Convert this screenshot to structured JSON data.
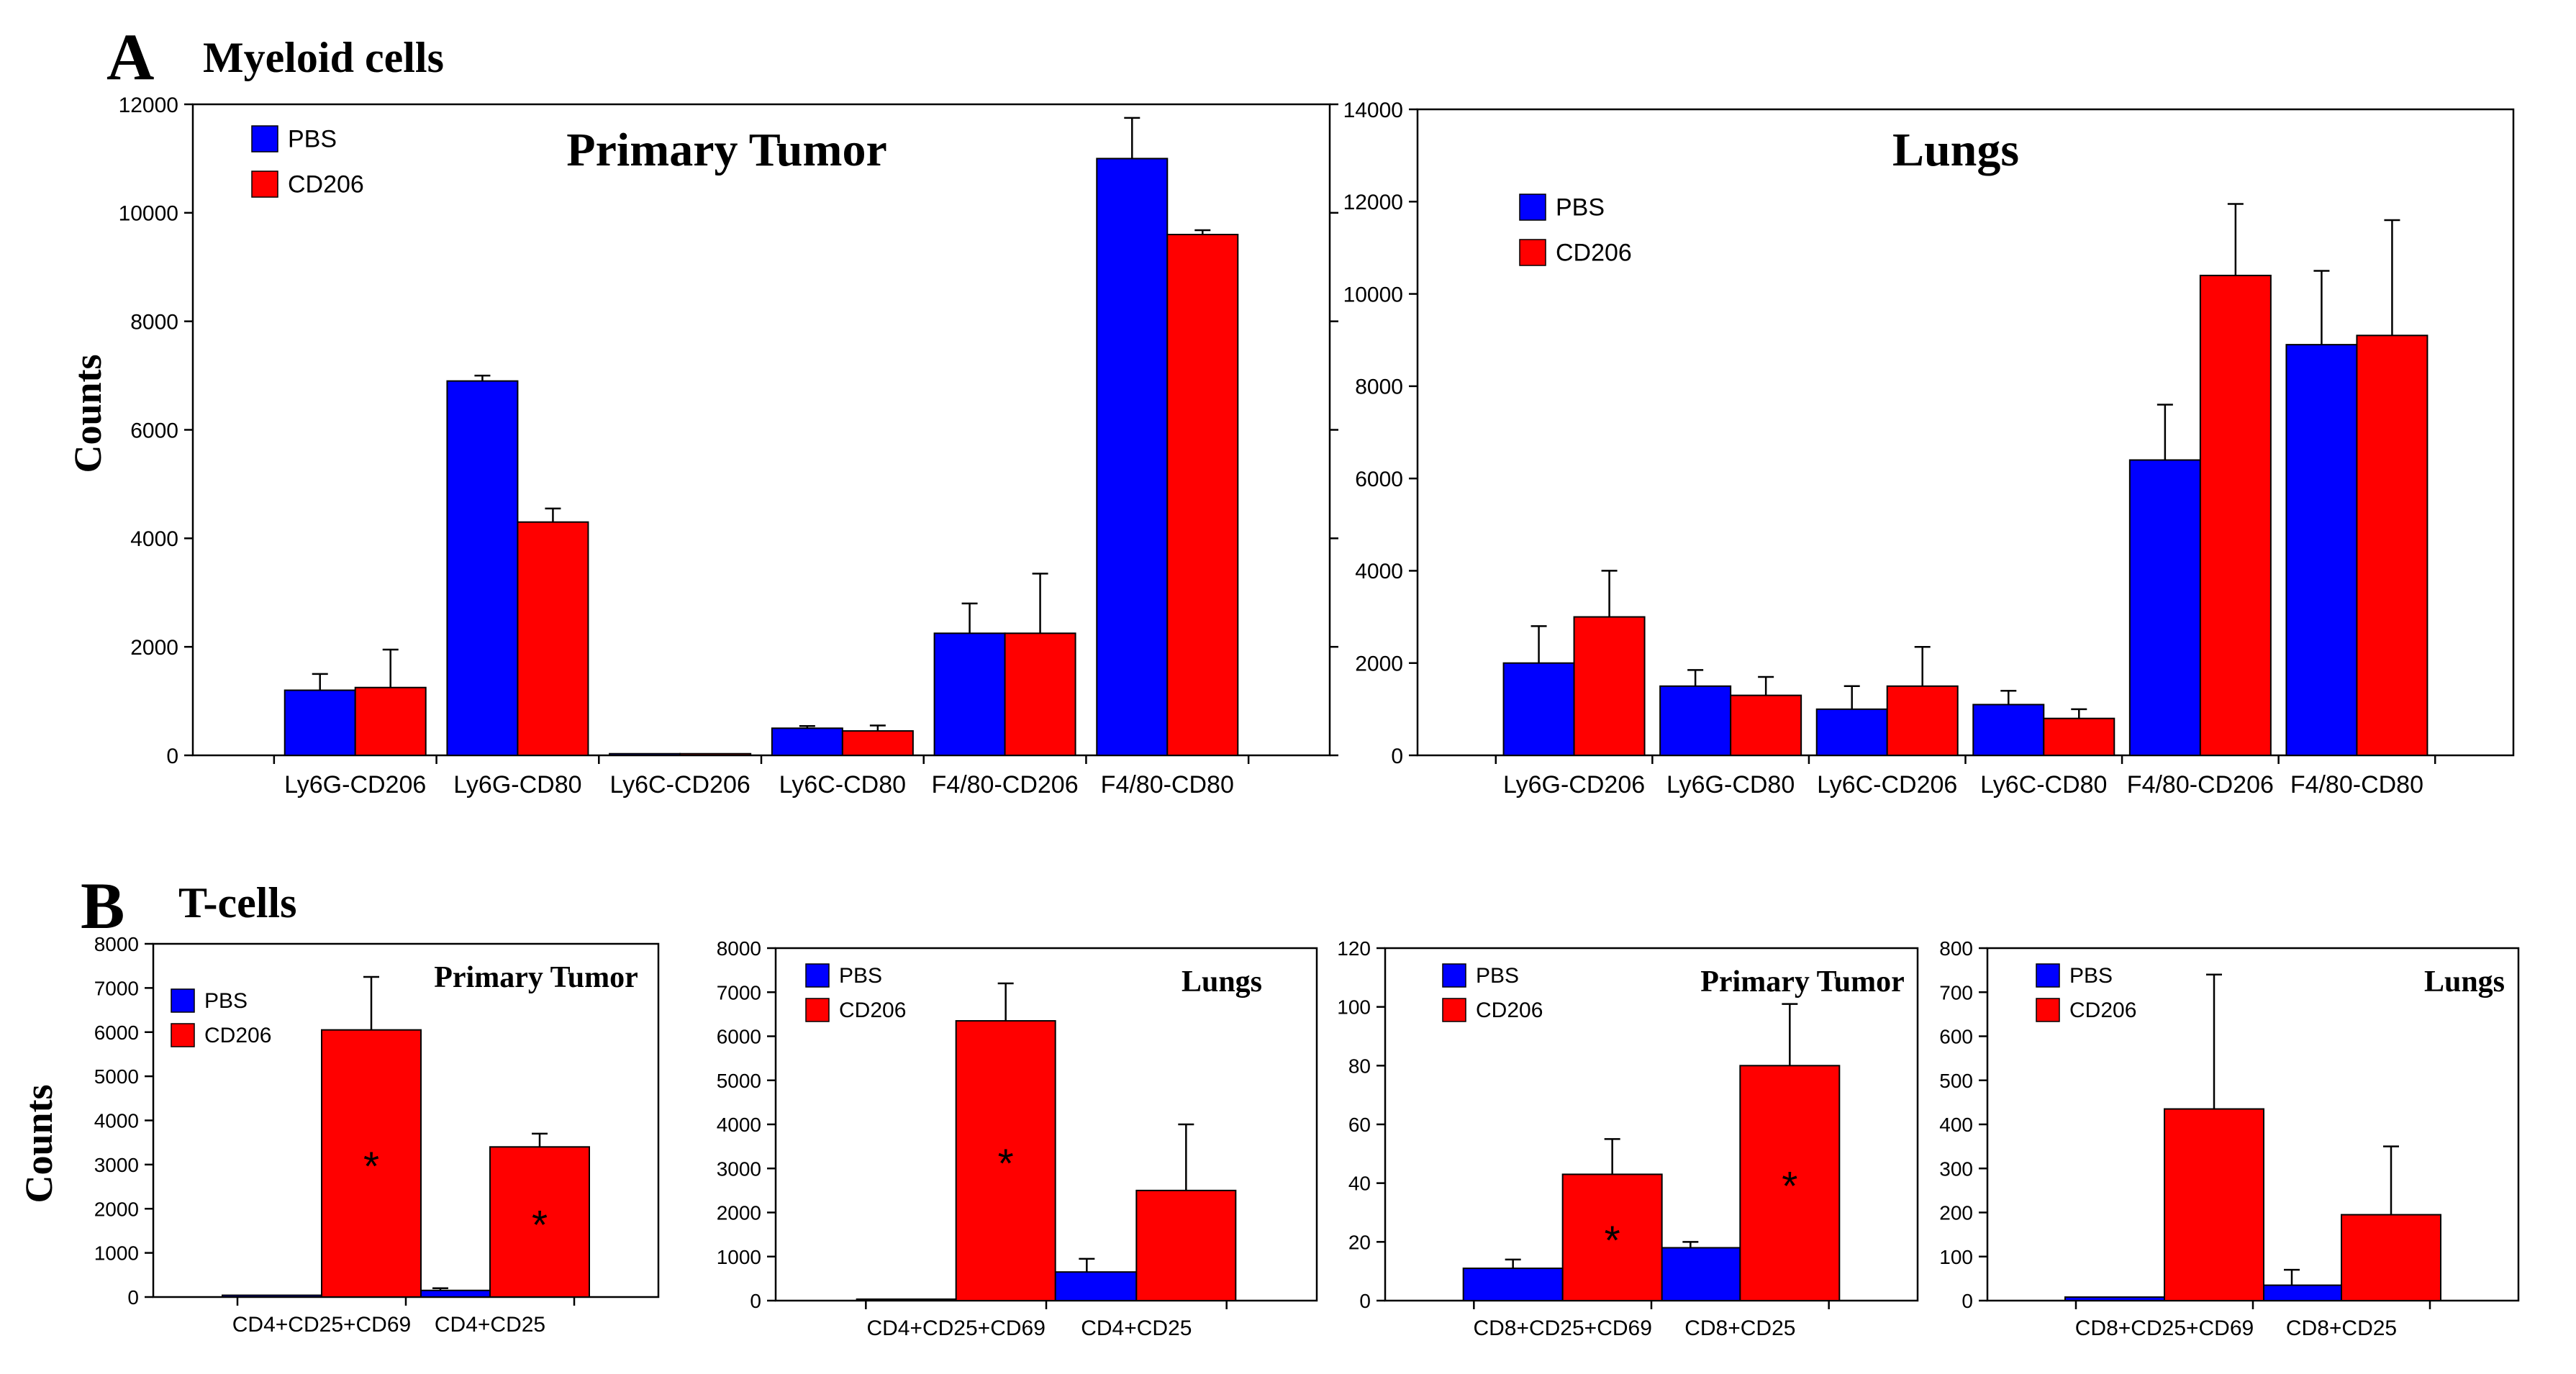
{
  "panels": [
    {
      "letter": "A",
      "title": "Myeloid cells",
      "ylabel": "Counts"
    },
    {
      "letter": "B",
      "title": "T-cells",
      "ylabel": "Counts"
    }
  ],
  "colors": {
    "pbs": "#0000ff",
    "cd206": "#ff0000"
  },
  "chart_data": [
    {
      "type": "bar",
      "title": "Primary Tumor",
      "categories": [
        "Ly6G-CD206",
        "Ly6G-CD80",
        "Ly6C-CD206",
        "Ly6C-CD80",
        "F4/80-CD206",
        "F4/80-CD80"
      ],
      "ylim": [
        0,
        12000
      ],
      "yticks": [
        0,
        2000,
        4000,
        6000,
        8000,
        10000,
        12000
      ],
      "legend": {
        "position": "top-left"
      },
      "series": [
        {
          "name": "PBS",
          "values": [
            1200,
            6900,
            30,
            500,
            2250,
            11000
          ],
          "errors": [
            300,
            100,
            0,
            40,
            550,
            750
          ]
        },
        {
          "name": "CD206",
          "values": [
            1250,
            4300,
            30,
            450,
            2250,
            9600
          ],
          "errors": [
            700,
            250,
            0,
            100,
            1100,
            80
          ]
        }
      ],
      "markers": []
    },
    {
      "type": "bar",
      "title": "Lungs",
      "categories": [
        "Ly6G-CD206",
        "Ly6G-CD80",
        "Ly6C-CD206",
        "Ly6C-CD80",
        "F4/80-CD206",
        "F4/80-CD80"
      ],
      "ylim": [
        0,
        14000
      ],
      "yticks": [
        0,
        2000,
        4000,
        6000,
        8000,
        10000,
        12000,
        14000
      ],
      "legend": {
        "position": "top-left"
      },
      "series": [
        {
          "name": "PBS",
          "values": [
            2000,
            1500,
            1000,
            1100,
            6400,
            8900
          ],
          "errors": [
            800,
            350,
            500,
            300,
            1200,
            1600
          ]
        },
        {
          "name": "CD206",
          "values": [
            3000,
            1300,
            1500,
            800,
            10400,
            9100
          ],
          "errors": [
            1000,
            400,
            850,
            200,
            1550,
            2500
          ]
        }
      ],
      "markers": []
    },
    {
      "type": "bar",
      "title": "Primary  Tumor",
      "categories": [
        "CD4+CD25+CD69",
        "CD4+CD25"
      ],
      "ylim": [
        0,
        8000
      ],
      "yticks": [
        0,
        1000,
        2000,
        3000,
        4000,
        5000,
        6000,
        7000,
        8000
      ],
      "legend": {
        "position": "top-left"
      },
      "series": [
        {
          "name": "PBS",
          "values": [
            40,
            150
          ],
          "errors": [
            0,
            50
          ]
        },
        {
          "name": "CD206",
          "values": [
            6050,
            3400
          ],
          "errors": [
            1200,
            300
          ]
        }
      ],
      "markers": [
        {
          "category": 0,
          "series": 1,
          "text": "*"
        },
        {
          "category": 1,
          "series": 1,
          "text": "*"
        }
      ]
    },
    {
      "type": "bar",
      "title": "Lungs",
      "categories": [
        "CD4+CD25+CD69",
        "CD4+CD25"
      ],
      "ylim": [
        0,
        8000
      ],
      "yticks": [
        0,
        1000,
        2000,
        3000,
        4000,
        5000,
        6000,
        7000,
        8000
      ],
      "legend": {
        "position": "top-left"
      },
      "series": [
        {
          "name": "PBS",
          "values": [
            20,
            650
          ],
          "errors": [
            0,
            300
          ]
        },
        {
          "name": "CD206",
          "values": [
            6350,
            2500
          ],
          "errors": [
            850,
            1500
          ]
        }
      ],
      "markers": [
        {
          "category": 0,
          "series": 1,
          "text": "*"
        }
      ]
    },
    {
      "type": "bar",
      "title": "Primary  Tumor",
      "categories": [
        "CD8+CD25+CD69",
        "CD8+CD25"
      ],
      "ylim": [
        0,
        120
      ],
      "yticks": [
        0,
        20,
        40,
        60,
        80,
        100,
        120
      ],
      "legend": {
        "position": "top-left"
      },
      "series": [
        {
          "name": "PBS",
          "values": [
            11,
            18
          ],
          "errors": [
            3,
            2
          ]
        },
        {
          "name": "CD206",
          "values": [
            43,
            80
          ],
          "errors": [
            12,
            21
          ]
        }
      ],
      "markers": [
        {
          "category": 0,
          "series": 1,
          "text": "*"
        },
        {
          "category": 1,
          "series": 1,
          "text": "*"
        }
      ]
    },
    {
      "type": "bar",
      "title": "Lungs",
      "categories": [
        "CD8+CD25+CD69",
        "CD8+CD25"
      ],
      "ylim": [
        0,
        800
      ],
      "yticks": [
        0,
        100,
        200,
        300,
        400,
        500,
        600,
        700,
        800
      ],
      "legend": {
        "position": "top-left"
      },
      "series": [
        {
          "name": "PBS",
          "values": [
            8,
            35
          ],
          "errors": [
            0,
            35
          ]
        },
        {
          "name": "CD206",
          "values": [
            435,
            195
          ],
          "errors": [
            305,
            155
          ]
        }
      ],
      "markers": []
    }
  ]
}
